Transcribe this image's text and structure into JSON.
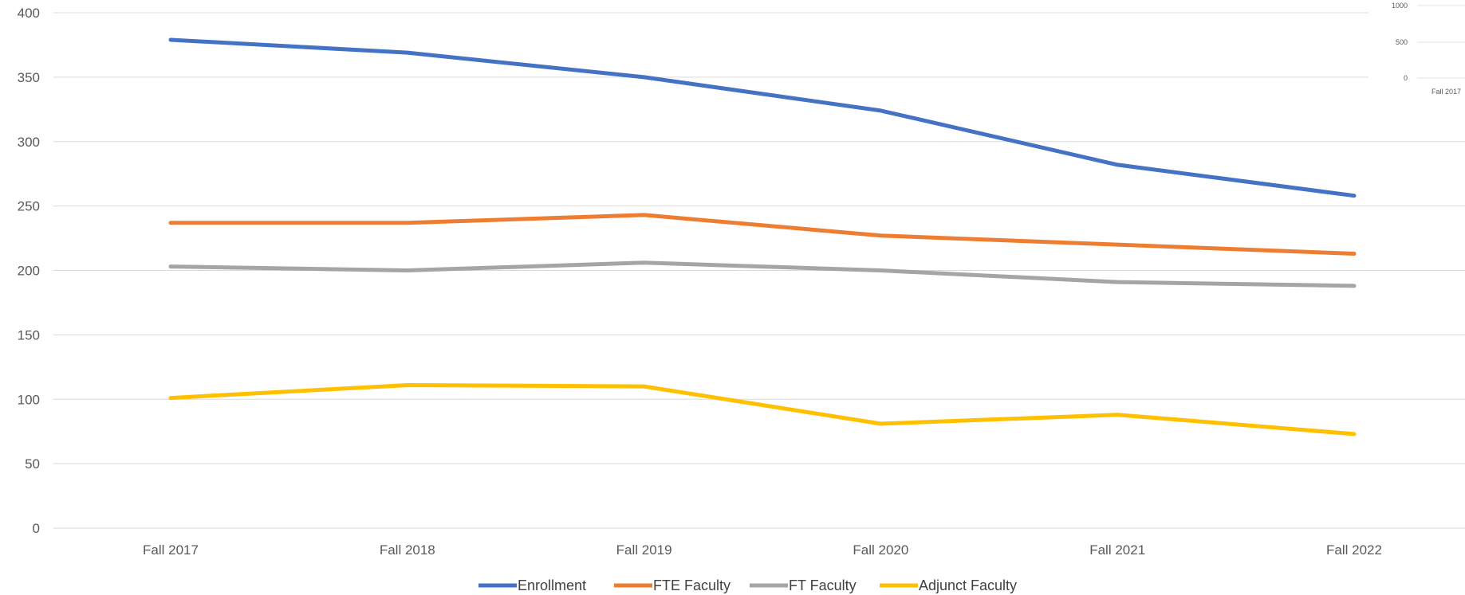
{
  "chart_data": [
    {
      "type": "line",
      "categories": [
        "Fall 2017",
        "Fall 2018",
        "Fall 2019",
        "Fall 2020",
        "Fall 2021",
        "Fall 2022"
      ],
      "series": [
        {
          "name": "Enrollment",
          "color": "#4472C4",
          "values": [
            379,
            369,
            350,
            324,
            282,
            258
          ]
        },
        {
          "name": "FTE Faculty",
          "color": "#ED7D31",
          "values": [
            237,
            237,
            243,
            227,
            220,
            213
          ]
        },
        {
          "name": "FT Faculty",
          "color": "#A5A5A5",
          "values": [
            203,
            200,
            206,
            200,
            191,
            188
          ]
        },
        {
          "name": "Adjunct Faculty",
          "color": "#FFC000",
          "values": [
            101,
            111,
            110,
            81,
            88,
            73
          ]
        }
      ],
      "y_ticks": [
        "0",
        "50",
        "100",
        "150",
        "200",
        "250",
        "300",
        "350",
        "400"
      ],
      "ylim": [
        0,
        400
      ],
      "grid": true,
      "legend": "bottom"
    },
    {
      "type": "line",
      "partial": true,
      "y_ticks": [
        "0",
        "500",
        "1000"
      ],
      "categories": [
        "Fall 2017"
      ]
    }
  ]
}
